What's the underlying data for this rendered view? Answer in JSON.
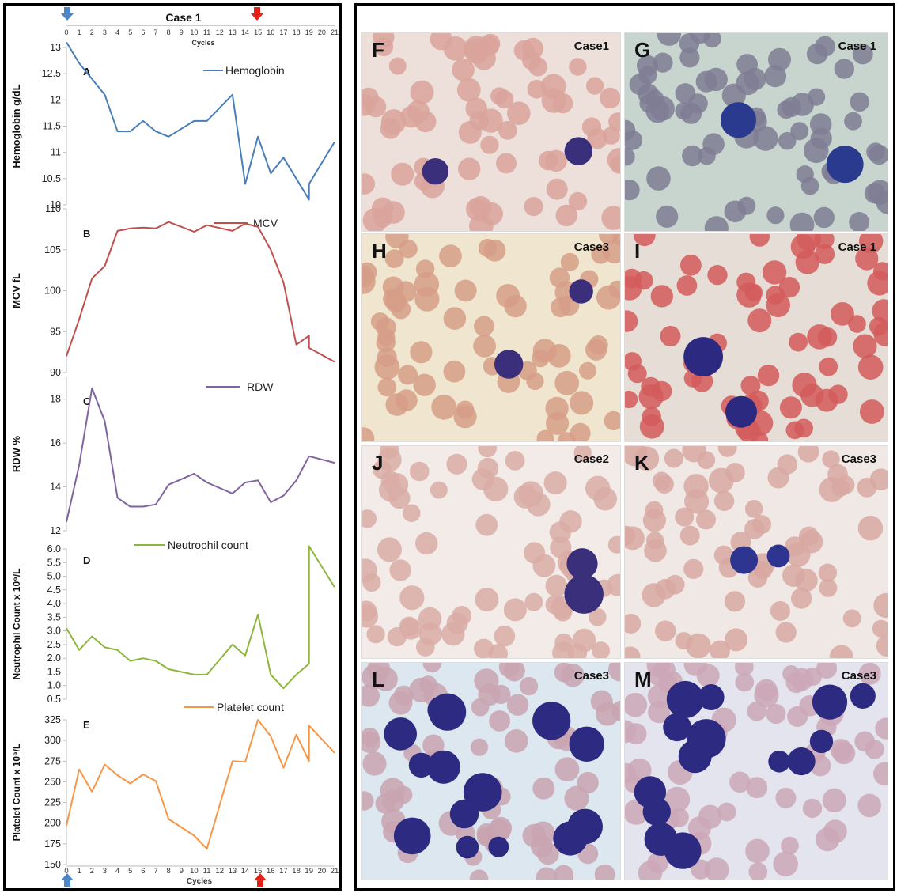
{
  "figure": {
    "case_title": "Case 1",
    "x_axis_label_top": "Cycles",
    "x_axis_label_bottom": "Cycles",
    "cycles": [
      0,
      1,
      2,
      3,
      4,
      5,
      6,
      7,
      8,
      9,
      10,
      11,
      12,
      13,
      14,
      15,
      16,
      17,
      18,
      19,
      20,
      21
    ],
    "arrow_colors": {
      "start": "#4f86c6",
      "end": "#e32119"
    }
  },
  "chart_data": [
    {
      "type": "line",
      "panel": "A",
      "ylabel": "Hemoglobin g/dL",
      "legend": "Hemoglobin",
      "color": "#4a7ebb",
      "ylim": [
        10,
        13
      ],
      "yticks": [
        "10",
        "10.5",
        "11",
        "11.5",
        "12",
        "12.5",
        "13"
      ],
      "x": [
        0,
        1,
        3,
        4,
        5,
        6,
        7,
        8,
        10,
        11,
        13,
        14,
        15,
        16,
        17,
        18,
        19,
        19,
        21
      ],
      "values": [
        13.1,
        12.7,
        12.1,
        11.4,
        11.4,
        11.6,
        11.4,
        11.3,
        11.6,
        11.6,
        12.1,
        10.4,
        11.3,
        10.6,
        10.9,
        10.5,
        10.1,
        10.4,
        11.2
      ]
    },
    {
      "type": "line",
      "panel": "B",
      "ylabel": "MCV fL",
      "legend": "MCV",
      "color": "#c0504d",
      "ylim": [
        90,
        110
      ],
      "yticks": [
        "90",
        "95",
        "100",
        "105",
        "110"
      ],
      "x": [
        0,
        1,
        2,
        3,
        4,
        5,
        6,
        7,
        8,
        10,
        11,
        13,
        14,
        15,
        16,
        17,
        18,
        19,
        19,
        21
      ],
      "values": [
        92,
        96.5,
        101.5,
        103,
        107.3,
        107.6,
        107.7,
        107.6,
        108.4,
        107.2,
        108,
        107.3,
        108.2,
        107.8,
        105,
        101,
        93.4,
        94.5,
        93,
        91.3
      ]
    },
    {
      "type": "line",
      "panel": "C",
      "ylabel": "RDW %",
      "legend": "RDW",
      "color": "#8064a2",
      "ylim": [
        12,
        19
      ],
      "yticks": [
        "12",
        "14",
        "16",
        "18"
      ],
      "x": [
        0,
        1,
        2,
        3,
        4,
        5,
        6,
        7,
        8,
        10,
        11,
        13,
        14,
        15,
        16,
        17,
        18,
        19,
        21
      ],
      "values": [
        12.4,
        15,
        18.5,
        17,
        13.5,
        13.1,
        13.1,
        13.2,
        14.1,
        14.6,
        14.2,
        13.7,
        14.2,
        14.3,
        13.3,
        13.6,
        14.3,
        15.4,
        15.1
      ]
    },
    {
      "type": "line",
      "panel": "D",
      "ylabel": "Neutrophil Count x 10⁹/L",
      "legend": "Neutrophil count",
      "color": "#8db63c",
      "ylim": [
        0.5,
        6.0
      ],
      "yticks": [
        "0.5",
        "1.0",
        "1.5",
        "2.0",
        "2.5",
        "3.0",
        "3.5",
        "4.0",
        "4.5",
        "5.0",
        "5.5",
        "6.0"
      ],
      "x": [
        0,
        1,
        2,
        3,
        4,
        5,
        6,
        7,
        8,
        10,
        11,
        13,
        14,
        15,
        16,
        17,
        18,
        19,
        19,
        21
      ],
      "values": [
        3.1,
        2.3,
        2.8,
        2.4,
        2.3,
        1.9,
        2.0,
        1.9,
        1.6,
        1.4,
        1.4,
        2.5,
        2.1,
        3.6,
        1.4,
        0.9,
        1.4,
        1.8,
        6.1,
        4.6
      ]
    },
    {
      "type": "line",
      "panel": "E",
      "ylabel": "Platelet Count x 10⁹/L",
      "legend": "Platelet count",
      "color": "#f79646",
      "ylim": [
        150,
        325
      ],
      "yticks": [
        "150",
        "175",
        "200",
        "225",
        "250",
        "275",
        "300",
        "325"
      ],
      "x": [
        0,
        1,
        2,
        3,
        4,
        5,
        6,
        7,
        8,
        10,
        11,
        13,
        14,
        15,
        16,
        17,
        18,
        19,
        19,
        21
      ],
      "values": [
        197,
        265,
        238,
        271,
        258,
        248,
        259,
        251,
        205,
        185,
        169,
        275,
        274,
        325,
        305,
        267,
        307,
        275,
        318,
        285
      ]
    }
  ],
  "micrographs": [
    {
      "panel": "F",
      "case": "Case1",
      "bg": "#ede0db",
      "rbc": "#d9a39b",
      "cell": "#3a2f7a"
    },
    {
      "panel": "G",
      "case": "Case 1",
      "bg": "#c8d4ce",
      "rbc": "#7f7c94",
      "cell": "#2a3a8f"
    },
    {
      "panel": "H",
      "case": "Case3",
      "bg": "#f0e6d0",
      "rbc": "#d69d87",
      "cell": "#3b2e7a"
    },
    {
      "panel": "I",
      "case": "Case 1",
      "bg": "#e5ddd6",
      "rbc": "#d45a5a",
      "cell": "#2b2a80"
    },
    {
      "panel": "J",
      "case": "Case2",
      "bg": "#f3ebe8",
      "rbc": "#d9ada6",
      "cell": "#3a2f7a"
    },
    {
      "panel": "K",
      "case": "Case3",
      "bg": "#f0e8e4",
      "rbc": "#d8a8a2",
      "cell": "#2d3590"
    },
    {
      "panel": "L",
      "case": "Case3",
      "bg": "#dce7ef",
      "rbc": "#c9a3b0",
      "cell": "#2d2a82"
    },
    {
      "panel": "M",
      "case": "Case3",
      "bg": "#e3e4ee",
      "rbc": "#cba7b6",
      "cell": "#2d2a82"
    }
  ]
}
